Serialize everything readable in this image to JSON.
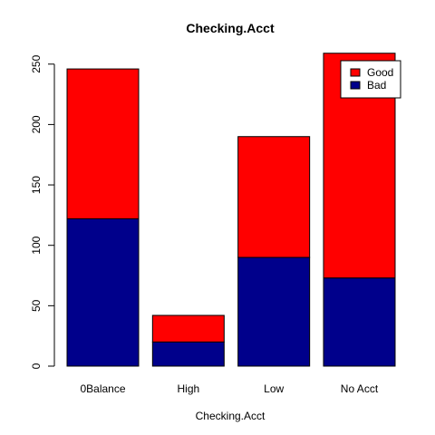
{
  "chart_data": {
    "type": "bar",
    "stacked": true,
    "title": "Checking.Acct",
    "xlabel": "Checking.Acct",
    "ylabel": "",
    "categories": [
      "0Balance",
      "High",
      "Low",
      "No Acct"
    ],
    "series": [
      {
        "name": "Bad",
        "values": [
          122,
          20,
          90,
          73
        ],
        "color": "#00008B"
      },
      {
        "name": "Good",
        "values": [
          124,
          22,
          100,
          186
        ],
        "color": "#FF0000"
      }
    ],
    "ylim": [
      0,
      260
    ],
    "yticks": [
      0,
      50,
      100,
      150,
      200,
      250
    ],
    "grid": false,
    "legend_position": "top-right",
    "legend_order": [
      "Good",
      "Bad"
    ]
  }
}
